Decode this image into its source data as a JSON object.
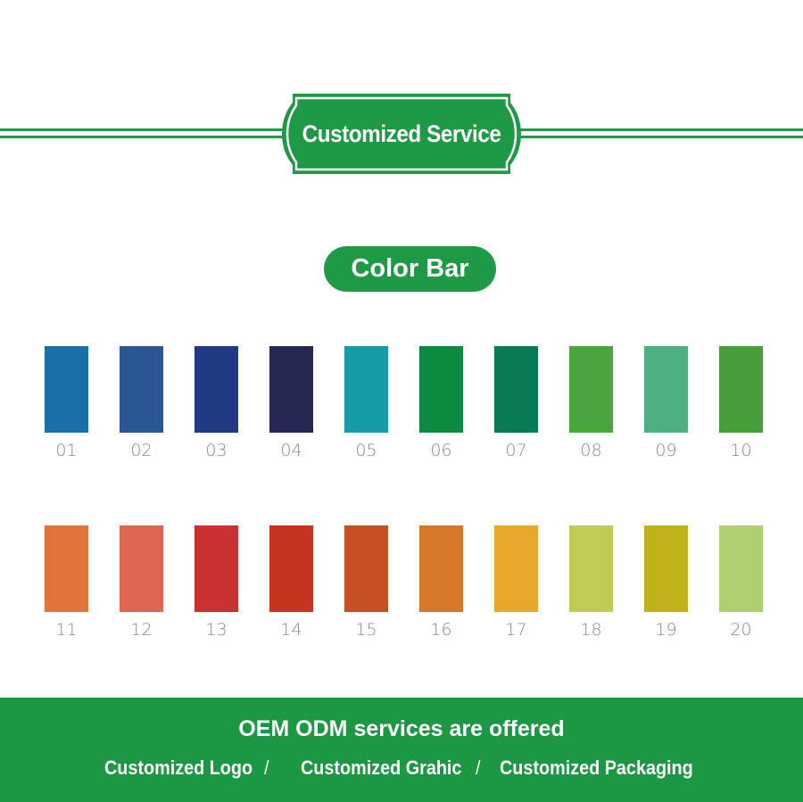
{
  "header": {
    "title": "Customized Service",
    "accent": "#1e9a46"
  },
  "section": {
    "title": "Color Bar"
  },
  "swatches": [
    {
      "label": "01",
      "color": "#1b6ea8"
    },
    {
      "label": "02",
      "color": "#2a5694"
    },
    {
      "label": "03",
      "color": "#1f3a83"
    },
    {
      "label": "04",
      "color": "#262753"
    },
    {
      "label": "05",
      "color": "#169ca6"
    },
    {
      "label": "06",
      "color": "#0b8b3f"
    },
    {
      "label": "07",
      "color": "#097a56"
    },
    {
      "label": "08",
      "color": "#4aa43f"
    },
    {
      "label": "09",
      "color": "#4fae82"
    },
    {
      "label": "10",
      "color": "#489e3a"
    },
    {
      "label": "11",
      "color": "#e0743a"
    },
    {
      "label": "12",
      "color": "#e06654"
    },
    {
      "label": "13",
      "color": "#c93133"
    },
    {
      "label": "14",
      "color": "#c63420"
    },
    {
      "label": "15",
      "color": "#c65022"
    },
    {
      "label": "16",
      "color": "#d6772a"
    },
    {
      "label": "17",
      "color": "#e8a82c"
    },
    {
      "label": "18",
      "color": "#c2cc55"
    },
    {
      "label": "19",
      "color": "#c1b21c"
    },
    {
      "label": "20",
      "color": "#afcf70"
    }
  ],
  "footer": {
    "headline": "OEM ODM services are offered",
    "items": [
      "Customized Logo",
      "Customized Grahic",
      "Customized Packaging"
    ],
    "separator": "/"
  }
}
